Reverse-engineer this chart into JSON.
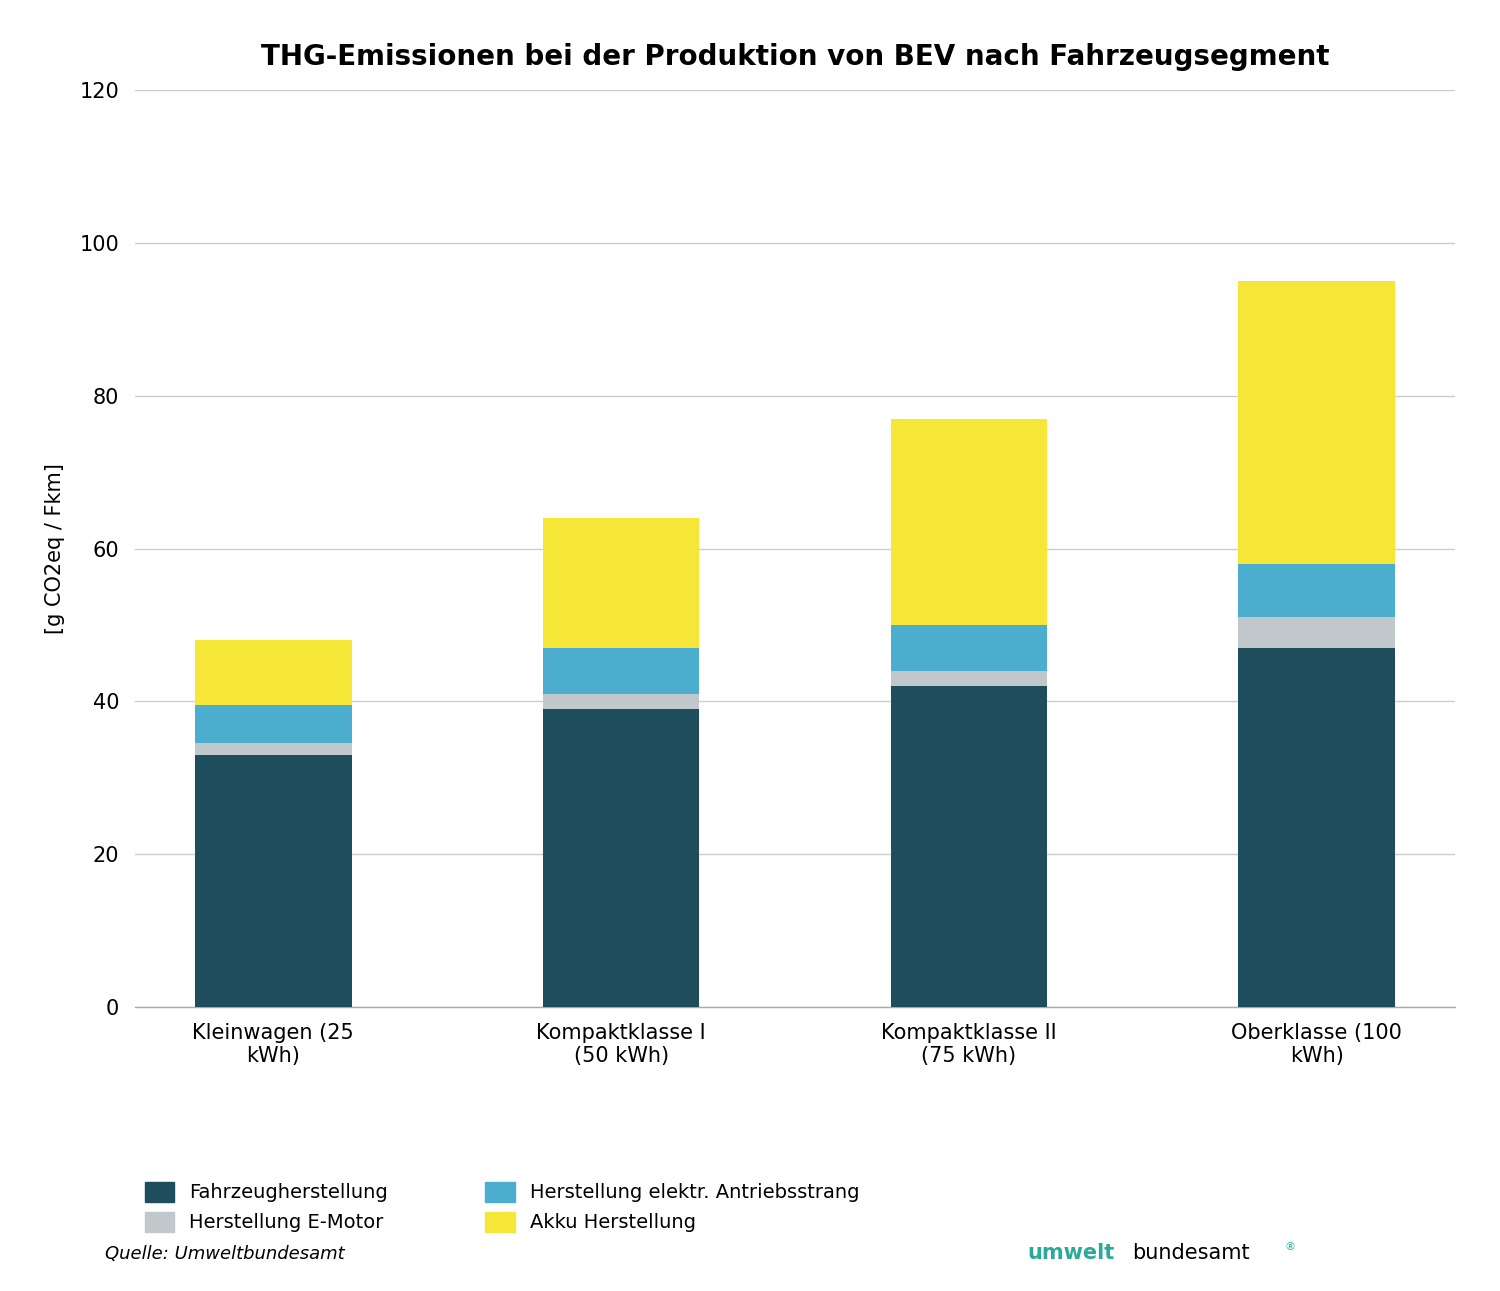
{
  "title": "THG-Emissionen bei der Produktion von BEV nach Fahrzeugsegment",
  "categories": [
    "Kleinwagen (25\nkWh)",
    "Kompaktklasse I\n(50 kWh)",
    "Kompaktklasse II\n(75 kWh)",
    "Oberklasse (100\nkWh)"
  ],
  "fahrzeugherstellung": [
    33,
    39,
    42,
    47
  ],
  "e_motor": [
    1.5,
    2,
    2,
    4
  ],
  "antriebsstrang": [
    5,
    6,
    6,
    7
  ],
  "akku": [
    8.5,
    17,
    27,
    37
  ],
  "colors": {
    "fahrzeugherstellung": "#1e4d5e",
    "e_motor": "#c0c8cc",
    "antriebsstrang": "#4baecf",
    "akku": "#f5e637"
  },
  "ylabel": "[g CO2eq / Fkm]",
  "ylim": [
    0,
    120
  ],
  "yticks": [
    0,
    20,
    40,
    60,
    80,
    100,
    120
  ],
  "legend_labels": {
    "fahrzeugherstellung": "Fahrzeugherstellung",
    "e_motor": "Herstellung E-Motor",
    "antriebsstrang": "Herstellung elektr. Antriebsstrang",
    "akku": "Akku Herstellung"
  },
  "source_text": "Quelle: Umweltbundesamt",
  "background_color": "#ffffff",
  "bar_width": 0.45,
  "title_fontsize": 20,
  "axis_fontsize": 15,
  "tick_fontsize": 15,
  "legend_fontsize": 14,
  "source_fontsize": 13
}
